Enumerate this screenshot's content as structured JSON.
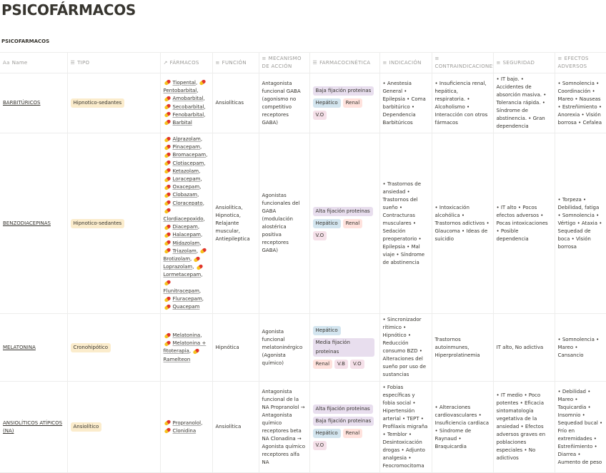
{
  "title": "PSICOFÁRMACOS",
  "subtitle": "PSICOFARMACOS",
  "headers": [
    {
      "icon": "Aa",
      "label": "Name"
    },
    {
      "icon": "☰",
      "label": "TIPO"
    },
    {
      "icon": "↗",
      "label": "FÁRMACOS"
    },
    {
      "icon": "≡",
      "label": "FUNCIÓN"
    },
    {
      "icon": "≡",
      "label": "MECANISMO DE ACCIÓN"
    },
    {
      "icon": "☰",
      "label": "FARMACOCINÉTICA"
    },
    {
      "icon": "≡",
      "label": "INDICACIÓN"
    },
    {
      "icon": "≡",
      "label": "CONTRAINDICACIONES"
    },
    {
      "icon": "≡",
      "label": "SEGURIDAD"
    },
    {
      "icon": "≡",
      "label": "EFECTOS ADVERSOS"
    }
  ],
  "tag_colors": {
    "Hipnotico-sedantes": "#fbeccc",
    "Cronohipótico": "#fbeccc",
    "Ansiolítico": "#fbeccc",
    "Baja fijación proteinas": "#e8deee",
    "Alta fijación proteinas": "#e8deee",
    "Media fijación proteinas": "#e8deee",
    "Hepático": "#d3e5ef",
    "Renal": "#ffe2dd",
    "V.O": "#f5e0e9",
    "V.B": "#f5e0e9"
  },
  "rows": [
    {
      "name": "BARBITÚRICOS",
      "tipo": "Hipnotico-sedantes",
      "farmacos": [
        "Tiopental",
        "Pentobarbital",
        "Amobarbital",
        "Secobarbital",
        "Fenobarbital",
        "Barbital"
      ],
      "funcion": "Ansiolíticas",
      "mecanismo": "Antagonista funcional GABA (agonismo no competitivo receptores GABA)",
      "farmacocinetica": [
        "Baja fijación proteinas",
        "Hepático",
        "Renal",
        "V.O"
      ],
      "indicacion": "• Anestesia General • Epilepsia • Coma barbitúrico • Dependencia Barbitúricos",
      "contraindicaciones": "• Insuficiencia renal, hepática, respiratoria. • Alcoholismo • Interacción con otros fármacos",
      "seguridad": "• IT bajo. • Accidentes de absorción masiva. • Tolerancia rápida. • Síndrome de abstinencia. • Gran dependencia",
      "efectos": "• Somnolencia • Coordinación • Mareo • Nauseas • Estreñimiento • Anorexia • Visión borrosa • Cefalea"
    },
    {
      "name": "BENZODIACEPINAS",
      "tipo": "Hipnotico-sedantes",
      "farmacos": [
        "Alprazolam",
        "Pinacepam",
        "Bromacepam",
        "Clotiacepam",
        "Ketazolam",
        "Loracepam",
        "Oxacepam",
        "Clobazam",
        "Cloracepato",
        "Clordiacepoxido",
        "Diacepam",
        "Halacepam",
        "Midazolam",
        "Triazolam",
        "Brotizolam",
        "Loprazolam",
        "Lormetacepam",
        "Flunitracepam",
        "Fluracepam",
        "Quacepam"
      ],
      "funcion": "Ansiolítica, Hipnotica, Relajante muscular, Antiepileptica",
      "mecanismo": "Agonistas funcionales del GABA (modulación alostérica positiva receptores GABA)",
      "farmacocinetica": [
        "Alta fijación proteinas",
        "Hepático",
        "Renal",
        "V.O"
      ],
      "indicacion": "• Trastornos de ansiedad • Trastornos del sueño • Contracturas musculares • Sedación preoperatorio • Epilepsia • Mal viaje • Síndrome de abstinencia",
      "contraindicaciones": "• Intoxicación alcohólica • Trastornos adictivos • Glaucoma • Ideas de suicidio",
      "seguridad": "• IT alto • Pocos efectos adversos • Pocas intoxicaciones • Posible dependencia",
      "efectos": "• Torpeza • Debilidad, fatiga • Somnolencia • Vértigo • Ataxia • Sequedad de boca • Visión borrosa"
    },
    {
      "name": "MELATONINA",
      "tipo": "Cronohipótico",
      "farmacos": [
        "Melatonina",
        "Melatonina + fitoterapia",
        "Ramelteon"
      ],
      "funcion": "Hipnótica",
      "mecanismo": "Agonista funcional melatoninérgico (Agonista químico)",
      "farmacocinetica": [
        "Hepático",
        "Media fijación proteinas",
        "Renal",
        "V.B",
        "V.O"
      ],
      "indicacion": "• Sincronizador rítimico • Hipnótico • Reducción consumo BZD • Alteraciones del sueño por uso de sustancias",
      "contraindicaciones": "Trastornos autoinmunes, Hiperprolatinemia",
      "seguridad": "IT alto, No adictiva",
      "efectos": "• Somnolencia • Mareo • Cansancio"
    },
    {
      "name": "ANSIOLÍTICOS ATÍPICOS (NA)",
      "tipo": "Ansiolítico",
      "farmacos": [
        "Propranolol",
        "Clonidina"
      ],
      "funcion": "Ansiolítica",
      "mecanismo": "Antagonista funcional de la NA Propranolol → Antagonista químico receptores beta NA Clonadina → Agonista químico receptores alfa NA",
      "farmacocinetica": [
        "Alta fijación proteinas",
        "Baja fijación proteinas",
        "Hepático",
        "Renal",
        "V.O"
      ],
      "indicacion": "• Fobias específicas y fobia social • Hipertensión arterial • TEPT • Profilaxis migraña • Temblor • Desintoxicación drogas • Adjunto analgesia • Feocromocitoma",
      "contraindicaciones": "• Alteraciones cardiovasculares • Insuficiencia cardiaca • Síndrome de Raynaud • Braquicardia",
      "seguridad": "• IT medio • Poco potentes • Eficacia sintomatología vegetativa de la ansiedad • Efectos adversos graves en poblaciones especiales • No adictivos",
      "efectos": "• Debilidad • Mareo • Taquicardia • Insomnio • Sequedad bucal • Frío en extremidades • Estreñimiento • Diarrea • Aumento de peso"
    }
  ]
}
